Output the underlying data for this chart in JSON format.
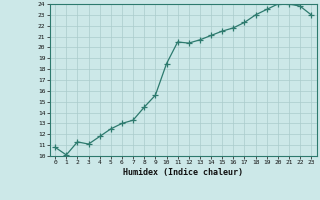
{
  "x": [
    0,
    1,
    2,
    3,
    4,
    5,
    6,
    7,
    8,
    9,
    10,
    11,
    12,
    13,
    14,
    15,
    16,
    17,
    18,
    19,
    20,
    21,
    22,
    23
  ],
  "y": [
    10.8,
    10.1,
    11.3,
    11.1,
    11.8,
    12.5,
    13.0,
    13.3,
    14.5,
    15.6,
    18.5,
    20.5,
    20.4,
    20.7,
    21.1,
    21.5,
    21.8,
    22.3,
    23.0,
    23.5,
    24.0,
    24.0,
    23.8,
    23.0
  ],
  "xlabel": "Humidex (Indice chaleur)",
  "line_color": "#2d7a6e",
  "marker": "+",
  "bg_color": "#cce8e8",
  "grid_color": "#aacccc",
  "ylim": [
    10,
    24
  ],
  "xlim": [
    -0.5,
    23.5
  ],
  "yticks": [
    10,
    11,
    12,
    13,
    14,
    15,
    16,
    17,
    18,
    19,
    20,
    21,
    22,
    23,
    24
  ],
  "xticks": [
    0,
    1,
    2,
    3,
    4,
    5,
    6,
    7,
    8,
    9,
    10,
    11,
    12,
    13,
    14,
    15,
    16,
    17,
    18,
    19,
    20,
    21,
    22,
    23
  ]
}
